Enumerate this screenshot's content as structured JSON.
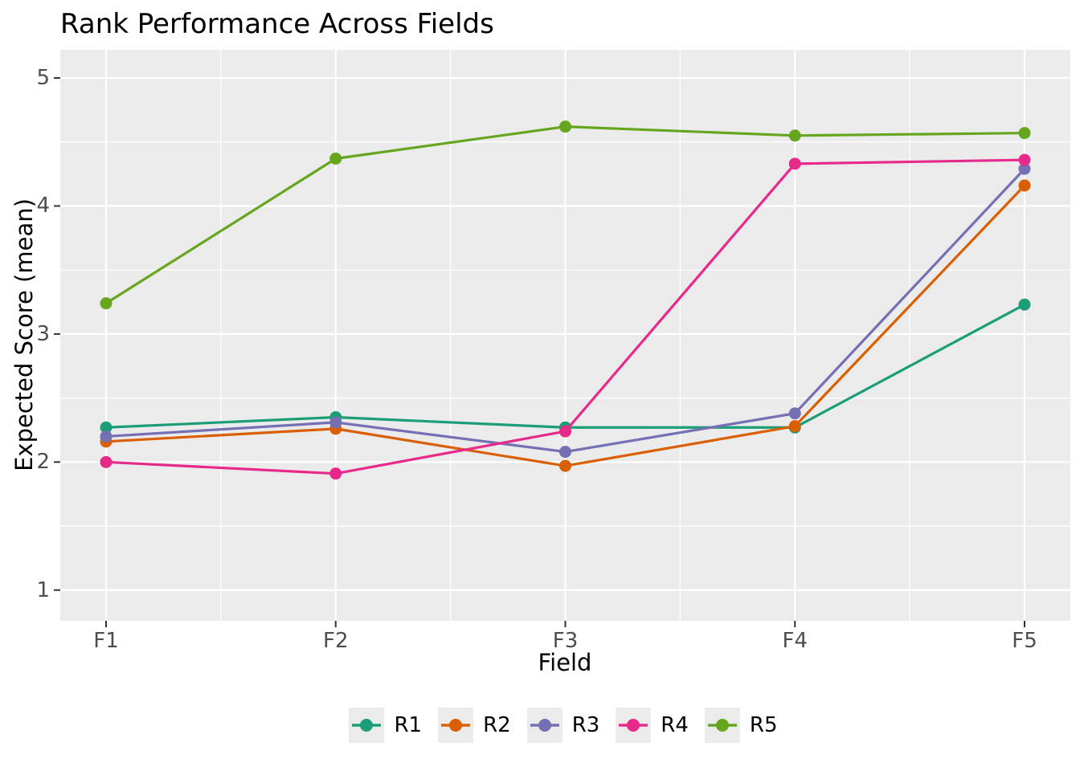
{
  "chart_data": {
    "type": "line",
    "title": "Rank Performance Across Fields",
    "xlabel": "Field",
    "ylabel": "Expected Score (mean)",
    "categories": [
      "F1",
      "F2",
      "F3",
      "F4",
      "F5"
    ],
    "series": [
      {
        "name": "R1",
        "color": "#1B9E77",
        "values": [
          2.27,
          2.35,
          2.27,
          2.27,
          3.23
        ]
      },
      {
        "name": "R2",
        "color": "#D95F02",
        "values": [
          2.16,
          2.26,
          1.97,
          2.28,
          4.16
        ]
      },
      {
        "name": "R3",
        "color": "#7570B3",
        "values": [
          2.2,
          2.31,
          2.08,
          2.38,
          4.29
        ]
      },
      {
        "name": "R4",
        "color": "#E7298A",
        "values": [
          2.0,
          1.91,
          2.24,
          4.33,
          4.36
        ]
      },
      {
        "name": "R5",
        "color": "#66A61E",
        "values": [
          3.24,
          4.37,
          4.62,
          4.55,
          4.57
        ]
      }
    ],
    "y_ticks": [
      1,
      2,
      3,
      4,
      5
    ],
    "ylim": [
      0.76,
      5.22
    ],
    "grid": true,
    "legend_position": "bottom",
    "panel_bg": "#EBEBEB",
    "grid_color": "#FFFFFF",
    "tick_color": "#333333",
    "tick_text_color": "#4D4D4D",
    "text_color": "#000000",
    "legend_key_bg": "#EBEBEB"
  }
}
